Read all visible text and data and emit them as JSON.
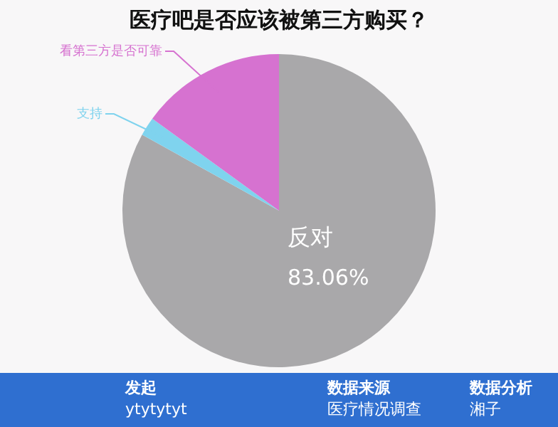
{
  "chart_data": {
    "type": "pie",
    "title": "医疗吧是否应该被第三方购买？",
    "categories": [
      "反对",
      "支持",
      "看第三方是否可靠"
    ],
    "values": [
      83.06,
      1.94,
      15.0
    ],
    "colors": [
      "#a9a8aa",
      "#7fd3ee",
      "#d672d0"
    ],
    "value_labels": [
      "83.06%",
      null,
      null
    ],
    "legend": false,
    "annotations": [
      "发起",
      "ytytytyt",
      "数据来源",
      "医疗情况调查",
      "数据分析",
      "湘子"
    ]
  }
}
